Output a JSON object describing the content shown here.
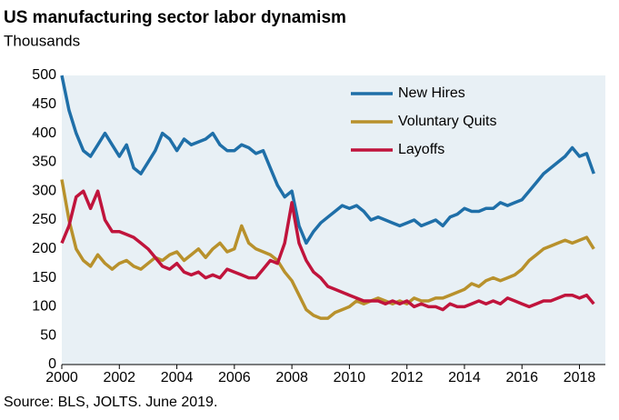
{
  "chart_data": {
    "type": "line",
    "title": "US manufacturing sector labor dynamism",
    "subtitle": "Thousands",
    "source": "Source: BLS, JOLTS. June 2019.",
    "x": [
      2000,
      2000.25,
      2000.5,
      2000.75,
      2001,
      2001.25,
      2001.5,
      2001.75,
      2002,
      2002.25,
      2002.5,
      2002.75,
      2003,
      2003.25,
      2003.5,
      2003.75,
      2004,
      2004.25,
      2004.5,
      2004.75,
      2005,
      2005.25,
      2005.5,
      2005.75,
      2006,
      2006.25,
      2006.5,
      2006.75,
      2007,
      2007.25,
      2007.5,
      2007.75,
      2008,
      2008.25,
      2008.5,
      2008.75,
      2009,
      2009.25,
      2009.5,
      2009.75,
      2010,
      2010.25,
      2010.5,
      2010.75,
      2011,
      2011.25,
      2011.5,
      2011.75,
      2012,
      2012.25,
      2012.5,
      2012.75,
      2013,
      2013.25,
      2013.5,
      2013.75,
      2014,
      2014.25,
      2014.5,
      2014.75,
      2015,
      2015.25,
      2015.5,
      2015.75,
      2016,
      2016.25,
      2016.5,
      2016.75,
      2017,
      2017.25,
      2017.5,
      2017.75,
      2018,
      2018.25,
      2018.5
    ],
    "series": [
      {
        "name": "New Hires",
        "color": "#1f6fa8",
        "values": [
          500,
          440,
          400,
          370,
          360,
          380,
          400,
          380,
          360,
          380,
          340,
          330,
          350,
          370,
          400,
          390,
          370,
          390,
          380,
          385,
          390,
          400,
          380,
          370,
          370,
          380,
          375,
          365,
          370,
          340,
          310,
          290,
          300,
          240,
          210,
          230,
          245,
          255,
          265,
          275,
          270,
          275,
          265,
          250,
          255,
          250,
          245,
          240,
          245,
          250,
          240,
          245,
          250,
          240,
          255,
          260,
          270,
          265,
          265,
          270,
          270,
          280,
          275,
          280,
          285,
          300,
          315,
          330,
          340,
          350,
          360,
          375,
          360,
          365,
          330
        ]
      },
      {
        "name": "Voluntary Quits",
        "color": "#b8912c",
        "values": [
          320,
          250,
          200,
          180,
          170,
          190,
          175,
          165,
          175,
          180,
          170,
          165,
          175,
          185,
          180,
          190,
          195,
          180,
          190,
          200,
          185,
          200,
          210,
          195,
          200,
          240,
          210,
          200,
          195,
          190,
          180,
          160,
          145,
          120,
          95,
          85,
          80,
          80,
          90,
          95,
          100,
          110,
          105,
          110,
          115,
          110,
          105,
          110,
          105,
          115,
          110,
          110,
          115,
          115,
          120,
          125,
          130,
          140,
          135,
          145,
          150,
          145,
          150,
          155,
          165,
          180,
          190,
          200,
          205,
          210,
          215,
          210,
          215,
          220,
          200
        ]
      },
      {
        "name": "Layoffs",
        "color": "#c0143c",
        "values": [
          210,
          240,
          290,
          300,
          270,
          300,
          250,
          230,
          230,
          225,
          220,
          210,
          200,
          185,
          170,
          165,
          175,
          160,
          155,
          160,
          150,
          155,
          150,
          165,
          160,
          155,
          150,
          150,
          165,
          180,
          175,
          210,
          280,
          210,
          180,
          160,
          150,
          135,
          130,
          125,
          120,
          115,
          110,
          110,
          110,
          105,
          110,
          105,
          110,
          100,
          105,
          100,
          100,
          95,
          105,
          100,
          100,
          105,
          110,
          105,
          110,
          105,
          115,
          110,
          105,
          100,
          105,
          110,
          110,
          115,
          120,
          120,
          115,
          120,
          105
        ]
      }
    ],
    "xlim": [
      2000,
      2018.9
    ],
    "xticks": [
      2000,
      2002,
      2004,
      2006,
      2008,
      2010,
      2012,
      2014,
      2016,
      2018
    ],
    "ylim": [
      0,
      500
    ],
    "yticks": [
      0,
      50,
      100,
      150,
      200,
      250,
      300,
      350,
      400,
      450,
      500
    ],
    "grid": false,
    "legend": "upper right"
  }
}
